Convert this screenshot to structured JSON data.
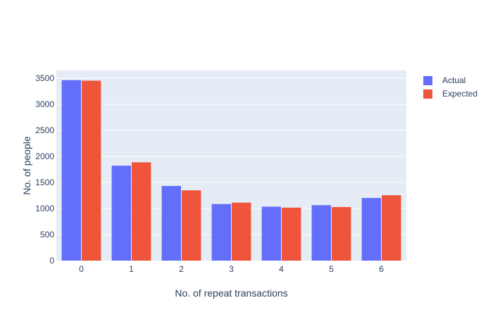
{
  "chart_data": {
    "type": "bar",
    "categories": [
      "0",
      "1",
      "2",
      "3",
      "4",
      "5",
      "6"
    ],
    "series": [
      {
        "name": "Actual",
        "color": "#636efa",
        "values": [
          3464,
          1823,
          1433,
          1086,
          1036,
          1065,
          1203
        ]
      },
      {
        "name": "Expected",
        "color": "#ef553b",
        "values": [
          3454,
          1887,
          1349,
          1113,
          1017,
          1029,
          1256
        ]
      }
    ],
    "xlabel": "No. of repeat transactions",
    "ylabel": "No. of people",
    "ylim": [
      0,
      3650
    ],
    "yticks": [
      0,
      500,
      1000,
      1500,
      2000,
      2500,
      3000,
      3500
    ],
    "grid": true,
    "legend_position": "top-right",
    "plot_background": "#e5ecf6"
  }
}
